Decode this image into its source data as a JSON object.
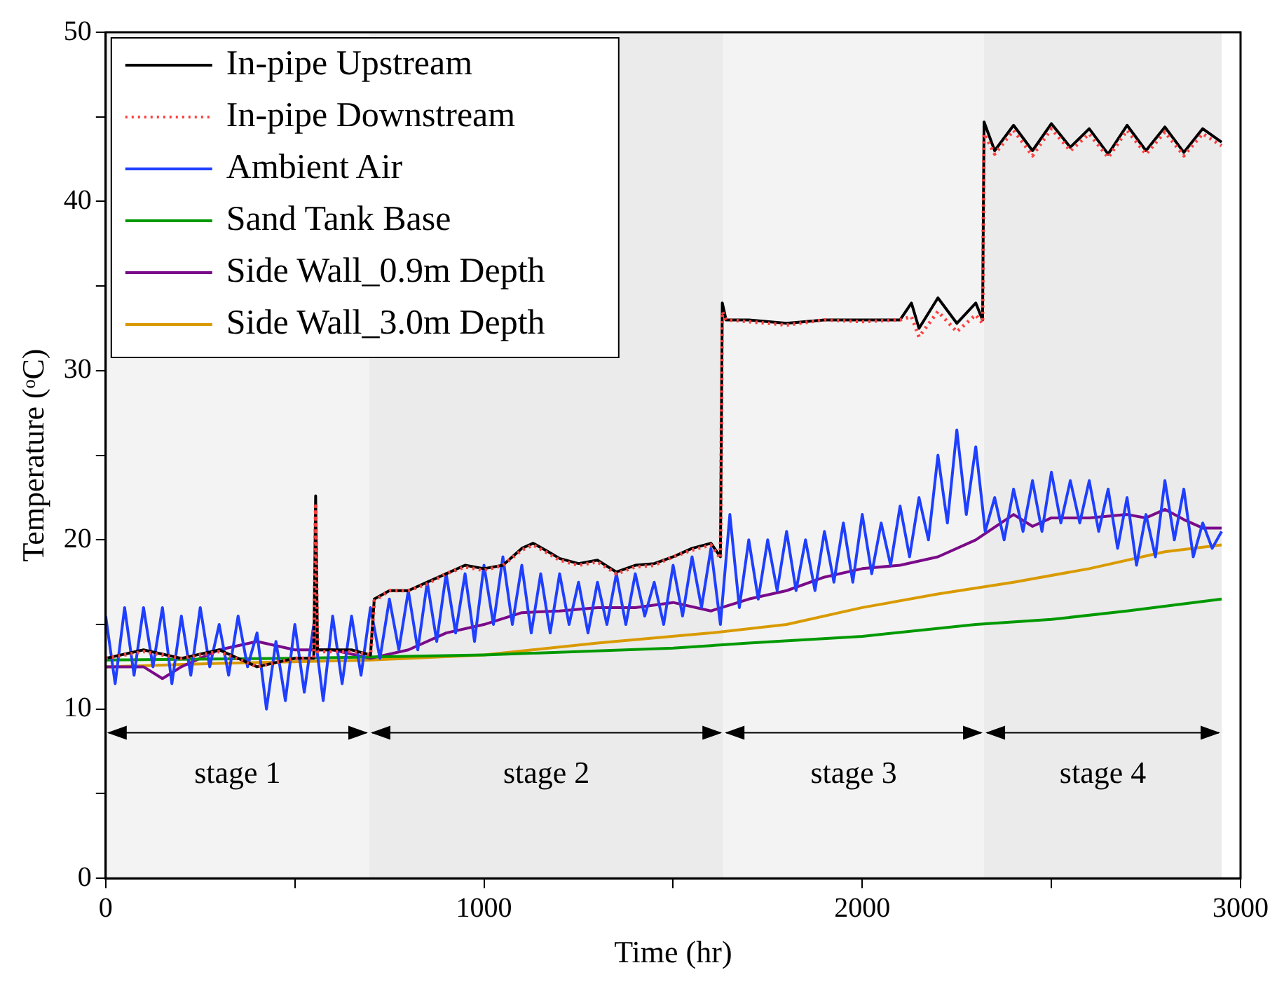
{
  "chart_data": {
    "type": "line",
    "xlabel": "Time (hr)",
    "ylabel": "Temperature (ᵒC)",
    "xlim": [
      0,
      3000
    ],
    "ylim": [
      0,
      50
    ],
    "xticks": [
      0,
      {
        "value": 500,
        "label": null
      },
      1000,
      {
        "value": 1500,
        "label": null
      },
      2000,
      {
        "value": 2500,
        "label": null
      },
      3000
    ],
    "yticks": [
      0,
      {
        "value": 5,
        "label": null
      },
      10,
      {
        "value": 15,
        "label": null
      },
      20,
      {
        "value": 25,
        "label": null
      },
      30,
      {
        "value": 35,
        "label": null
      },
      40,
      {
        "value": 45,
        "label": null
      },
      50
    ],
    "grid": false,
    "legend": "top left",
    "marker": "none",
    "bands": [
      {
        "axis": "x",
        "from": 0,
        "to": 697,
        "label": "stage 1",
        "color": "#f3f3f3"
      },
      {
        "axis": "x",
        "from": 697,
        "to": 1633,
        "label": "stage 2",
        "color": "#ebebeb"
      },
      {
        "axis": "x",
        "from": 1633,
        "to": 2322,
        "label": "stage 3",
        "color": "#f3f3f3"
      },
      {
        "axis": "x",
        "from": 2322,
        "to": 2950,
        "label": "stage 4",
        "color": "#ebebeb"
      }
    ],
    "series": [
      {
        "name": "In-pipe Upstream",
        "color": "#000000",
        "line_style": "solid",
        "x": [
          0,
          100,
          200,
          300,
          400,
          500,
          550,
          555,
          560,
          650,
          700,
          710,
          750,
          800,
          850,
          900,
          950,
          1000,
          1050,
          1100,
          1130,
          1170,
          1200,
          1250,
          1300,
          1350,
          1400,
          1450,
          1500,
          1550,
          1600,
          1625,
          1630,
          1640,
          1700,
          1800,
          1900,
          2000,
          2100,
          2130,
          2150,
          2200,
          2250,
          2300,
          2318,
          2322,
          2350,
          2400,
          2450,
          2500,
          2550,
          2600,
          2650,
          2700,
          2750,
          2800,
          2850,
          2900,
          2950
        ],
        "values": [
          13,
          13.5,
          13,
          13.5,
          12.5,
          13,
          13,
          22.6,
          13.5,
          13.5,
          13.2,
          16.5,
          17,
          17,
          17.5,
          18,
          18.5,
          18.3,
          18.5,
          19.5,
          19.8,
          19.3,
          18.9,
          18.6,
          18.8,
          18.1,
          18.5,
          18.6,
          19,
          19.5,
          19.8,
          19,
          34,
          33,
          33,
          32.8,
          33,
          33,
          33,
          34,
          32.5,
          34.3,
          32.8,
          34,
          33,
          44.7,
          43,
          44.5,
          43,
          44.6,
          43.2,
          44.3,
          42.8,
          44.5,
          43,
          44.4,
          42.9,
          44.3,
          43.5
        ]
      },
      {
        "name": "In-pipe Downstream",
        "color": "#ff4040",
        "line_style": "dotted",
        "x": [
          0,
          100,
          200,
          300,
          400,
          500,
          550,
          555,
          560,
          650,
          700,
          710,
          750,
          800,
          850,
          900,
          950,
          1000,
          1050,
          1100,
          1130,
          1170,
          1200,
          1250,
          1300,
          1350,
          1400,
          1450,
          1500,
          1550,
          1600,
          1625,
          1630,
          1640,
          1700,
          1800,
          1900,
          2000,
          2100,
          2130,
          2150,
          2200,
          2250,
          2300,
          2318,
          2322,
          2350,
          2400,
          2450,
          2500,
          2550,
          2600,
          2650,
          2700,
          2750,
          2800,
          2850,
          2900,
          2950
        ],
        "values": [
          13,
          13.4,
          13,
          13.4,
          12.5,
          13,
          13,
          22,
          13.4,
          13.4,
          13.2,
          16.4,
          17,
          17,
          17.4,
          18,
          18.4,
          18.2,
          18.5,
          19.4,
          19.7,
          19.2,
          18.8,
          18.5,
          18.7,
          18,
          18.4,
          18.5,
          19,
          19.4,
          19.7,
          18.9,
          33.5,
          33,
          32.9,
          32.7,
          33,
          32.9,
          33,
          33.2,
          32,
          33.5,
          32.3,
          33.3,
          32.8,
          44,
          42.8,
          44.2,
          42.7,
          44.3,
          43,
          44,
          42.6,
          44.2,
          42.8,
          44.1,
          42.7,
          44,
          43.3
        ]
      },
      {
        "name": "Ambient Air",
        "color": "#1f3fff",
        "line_style": "solid",
        "x": [
          0,
          25,
          50,
          75,
          100,
          125,
          150,
          175,
          200,
          225,
          250,
          275,
          300,
          325,
          350,
          375,
          400,
          425,
          450,
          475,
          500,
          525,
          550,
          575,
          600,
          625,
          650,
          675,
          700,
          725,
          750,
          775,
          800,
          825,
          850,
          875,
          900,
          925,
          950,
          975,
          1000,
          1025,
          1050,
          1075,
          1100,
          1125,
          1150,
          1175,
          1200,
          1225,
          1250,
          1275,
          1300,
          1325,
          1350,
          1375,
          1400,
          1425,
          1450,
          1475,
          1500,
          1525,
          1550,
          1575,
          1600,
          1625,
          1650,
          1675,
          1700,
          1725,
          1750,
          1775,
          1800,
          1825,
          1850,
          1875,
          1900,
          1925,
          1950,
          1975,
          2000,
          2025,
          2050,
          2075,
          2100,
          2125,
          2150,
          2175,
          2200,
          2225,
          2250,
          2275,
          2300,
          2325,
          2350,
          2375,
          2400,
          2425,
          2450,
          2475,
          2500,
          2525,
          2550,
          2575,
          2600,
          2625,
          2650,
          2675,
          2700,
          2725,
          2750,
          2775,
          2800,
          2825,
          2850,
          2875,
          2900,
          2925,
          2950
        ],
        "values": [
          15.5,
          11.5,
          16,
          12,
          16,
          12.5,
          16,
          11.5,
          15.5,
          12,
          16,
          12.5,
          15,
          12,
          15.5,
          12.5,
          14.5,
          10,
          14,
          10.5,
          15,
          11,
          15,
          10.5,
          15.5,
          11.5,
          15.5,
          12,
          16,
          13,
          16.5,
          13.5,
          17,
          13.5,
          17.5,
          14,
          18,
          14.5,
          18,
          14,
          18.5,
          15,
          19,
          15,
          18.5,
          14.5,
          18,
          14.5,
          18,
          15,
          17.5,
          14.5,
          17.5,
          15,
          18,
          15,
          18,
          15.5,
          17.5,
          15,
          18.5,
          15.5,
          19,
          16,
          19.5,
          15,
          21.5,
          16,
          20,
          16.5,
          20,
          17,
          20.5,
          17,
          20,
          17,
          20.5,
          17.5,
          21,
          17.5,
          21.5,
          18,
          21,
          18.5,
          22,
          19,
          22.5,
          20,
          25,
          21,
          26.5,
          21.5,
          25.5,
          20.5,
          22.5,
          20,
          23,
          20.5,
          23.5,
          20.5,
          24,
          21,
          23.5,
          21,
          23.5,
          20.5,
          23,
          19.5,
          22.5,
          18.5,
          21.5,
          19,
          23.5,
          20,
          23,
          19,
          21,
          19.5,
          20.5
        ]
      },
      {
        "name": "Sand Tank Base",
        "color": "#009900",
        "line_style": "solid",
        "x": [
          0,
          500,
          1000,
          1500,
          1700,
          2000,
          2300,
          2500,
          2700,
          2950
        ],
        "values": [
          12.9,
          13,
          13.2,
          13.6,
          13.9,
          14.3,
          15,
          15.3,
          15.8,
          16.5
        ]
      },
      {
        "name": "Side Wall_0.9m Depth",
        "color": "#7a0a8a",
        "line_style": "solid",
        "x": [
          0,
          100,
          150,
          200,
          300,
          400,
          500,
          600,
          700,
          800,
          900,
          1000,
          1100,
          1200,
          1300,
          1400,
          1500,
          1600,
          1700,
          1800,
          1900,
          2000,
          2100,
          2200,
          2300,
          2400,
          2450,
          2500,
          2600,
          2700,
          2750,
          2800,
          2850,
          2900,
          2950
        ],
        "values": [
          12.5,
          12.5,
          11.8,
          12.5,
          13.5,
          14,
          13.5,
          13.5,
          13,
          13.5,
          14.5,
          15,
          15.7,
          15.8,
          16,
          16,
          16.3,
          15.8,
          16.5,
          17,
          17.8,
          18.3,
          18.5,
          19,
          20,
          21.5,
          20.8,
          21.3,
          21.3,
          21.5,
          21.3,
          21.8,
          21.2,
          20.7,
          20.7
        ]
      },
      {
        "name": "Side Wall_3.0m Depth",
        "color": "#d99a00",
        "line_style": "solid",
        "x": [
          0,
          300,
          700,
          1000,
          1300,
          1600,
          1800,
          2000,
          2200,
          2400,
          2600,
          2800,
          2950
        ],
        "values": [
          12.5,
          12.7,
          12.9,
          13.2,
          13.9,
          14.5,
          15,
          16,
          16.8,
          17.5,
          18.3,
          19.3,
          19.7
        ]
      }
    ]
  }
}
